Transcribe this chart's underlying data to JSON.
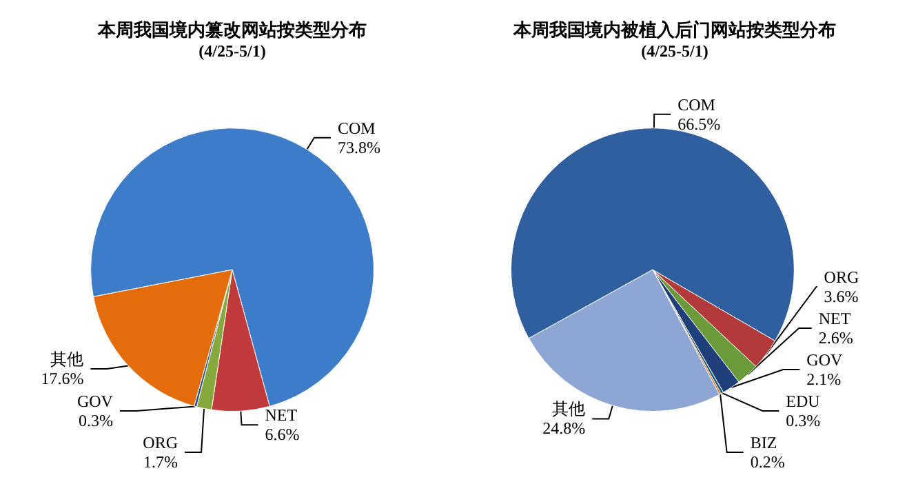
{
  "chart_data": [
    {
      "type": "pie",
      "title": "本周我国境内篡改网站按类型分布",
      "subtitle": "(4/25-5/1)",
      "categories": [
        "COM",
        "NET",
        "ORG",
        "GOV",
        "其他"
      ],
      "values": [
        73.8,
        6.6,
        1.7,
        0.3,
        17.6
      ],
      "value_labels": [
        "73.8%",
        "6.6%",
        "1.7%",
        "0.3%",
        "17.6%"
      ],
      "colors": [
        "#3d7cc9",
        "#c0393b",
        "#86a83c",
        "#2b4f8c",
        "#e46c0a"
      ],
      "legend": false
    },
    {
      "type": "pie",
      "title": "本周我国境内被植入后门网站按类型分布",
      "subtitle": "(4/25-5/1)",
      "categories": [
        "COM",
        "ORG",
        "NET",
        "GOV",
        "EDU",
        "BIZ",
        "其他"
      ],
      "values": [
        66.5,
        3.6,
        2.6,
        2.1,
        0.3,
        0.2,
        24.8
      ],
      "value_labels": [
        "66.5%",
        "3.6%",
        "2.6%",
        "2.1%",
        "0.3%",
        "0.2%",
        "24.8%"
      ],
      "colors": [
        "#2f5f9e",
        "#b33a3a",
        "#6b9a3a",
        "#1f3f7a",
        "#1d5a78",
        "#e46c0a",
        "#8ea6d4"
      ],
      "legend": false
    }
  ]
}
